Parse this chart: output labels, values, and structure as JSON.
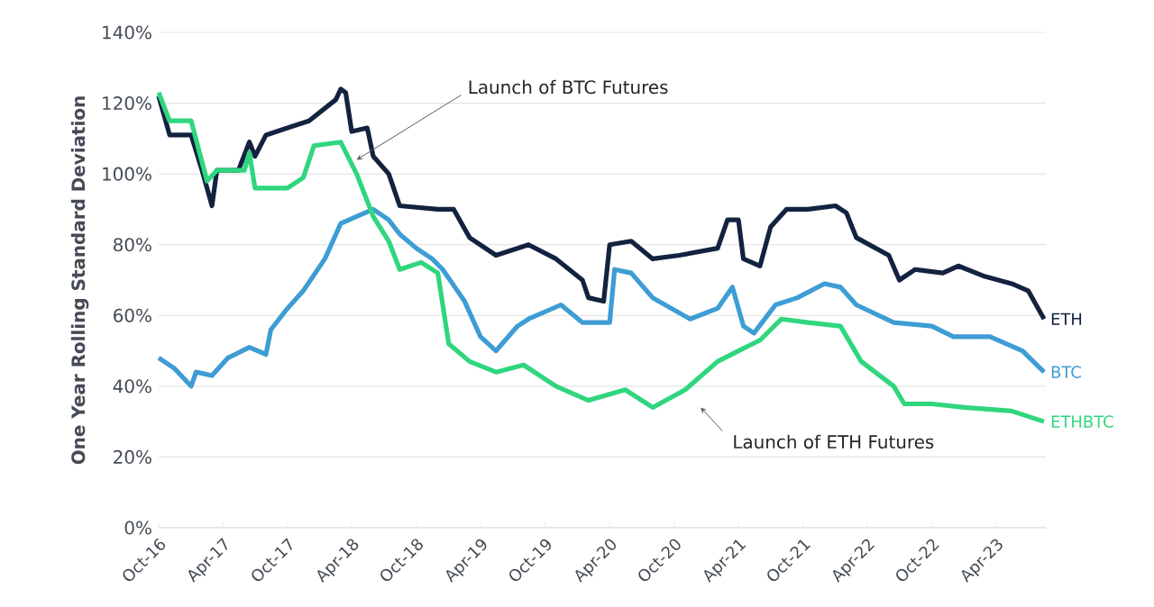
{
  "chart_data": {
    "type": "line",
    "ylabel": "One Year Rolling Standard Deviation",
    "ylim": [
      0,
      140
    ],
    "yticks": [
      {
        "value": 0,
        "label": "0%"
      },
      {
        "value": 20,
        "label": "20%"
      },
      {
        "value": 40,
        "label": "40%"
      },
      {
        "value": 60,
        "label": "60%"
      },
      {
        "value": 80,
        "label": "80%"
      },
      {
        "value": 100,
        "label": "100%"
      },
      {
        "value": 120,
        "label": "120%"
      },
      {
        "value": 140,
        "label": "140%"
      }
    ],
    "xlim": [
      "2016-10-01",
      "2023-08-20"
    ],
    "xticks": [
      {
        "value": "2016-10-01",
        "label": "Oct-16"
      },
      {
        "value": "2017-04-01",
        "label": "Apr-17"
      },
      {
        "value": "2017-10-01",
        "label": "Oct-17"
      },
      {
        "value": "2018-04-01",
        "label": "Apr-18"
      },
      {
        "value": "2018-10-01",
        "label": "Oct-18"
      },
      {
        "value": "2019-04-01",
        "label": "Apr-19"
      },
      {
        "value": "2019-10-01",
        "label": "Oct-19"
      },
      {
        "value": "2020-04-01",
        "label": "Apr-20"
      },
      {
        "value": "2020-10-01",
        "label": "Oct-20"
      },
      {
        "value": "2021-04-01",
        "label": "Apr-21"
      },
      {
        "value": "2021-10-01",
        "label": "Oct-21"
      },
      {
        "value": "2022-04-01",
        "label": "Apr-22"
      },
      {
        "value": "2022-10-01",
        "label": "Oct-22"
      },
      {
        "value": "2023-04-01",
        "label": "Apr-23"
      }
    ],
    "grid": "y",
    "legend": false,
    "marker": "none",
    "line_style": "solid",
    "annotations": [
      {
        "text": "Launch of BTC Futures",
        "x": "2018-04-15",
        "y": 104
      },
      {
        "text": "Launch of ETH Futures",
        "x": "2020-12-15",
        "y": 34
      }
    ],
    "series": [
      {
        "name": "ETH",
        "color": "#13223f",
        "x": [
          "2016-10-01",
          "2016-11-01",
          "2017-01-01",
          "2017-02-01",
          "2017-03-01",
          "2017-03-15",
          "2017-05-15",
          "2017-06-15",
          "2017-07-01",
          "2017-08-01",
          "2017-10-01",
          "2017-12-01",
          "2018-02-15",
          "2018-03-01",
          "2018-03-15",
          "2018-04-01",
          "2018-05-15",
          "2018-06-01",
          "2018-07-15",
          "2018-08-15",
          "2018-12-01",
          "2019-01-15",
          "2019-03-01",
          "2019-05-15",
          "2019-08-15",
          "2019-11-01",
          "2020-01-15",
          "2020-02-01",
          "2020-03-15",
          "2020-04-01",
          "2020-06-01",
          "2020-08-01",
          "2020-10-15",
          "2021-02-01",
          "2021-03-01",
          "2021-04-01",
          "2021-04-15",
          "2021-06-01",
          "2021-07-01",
          "2021-08-15",
          "2021-10-15",
          "2022-01-01",
          "2022-02-01",
          "2022-03-01",
          "2022-06-01",
          "2022-07-01",
          "2022-08-15",
          "2022-11-01",
          "2022-12-15",
          "2023-03-01",
          "2023-05-15",
          "2023-07-01",
          "2023-08-15"
        ],
        "values": [
          122,
          111,
          111,
          101,
          91,
          101,
          101,
          109,
          105,
          111,
          113,
          115,
          121,
          124,
          123,
          112,
          113,
          105,
          100,
          91,
          90,
          90,
          82,
          77,
          80,
          76,
          70,
          65,
          64,
          80,
          81,
          76,
          77,
          79,
          87,
          87,
          76,
          74,
          85,
          90,
          90,
          91,
          89,
          82,
          77,
          70,
          73,
          72,
          74,
          71,
          69,
          67,
          59
        ]
      },
      {
        "name": "BTC",
        "color": "#3d9dd4",
        "x": [
          "2016-10-01",
          "2016-11-15",
          "2017-01-01",
          "2017-01-15",
          "2017-03-01",
          "2017-04-15",
          "2017-06-15",
          "2017-08-01",
          "2017-08-15",
          "2017-10-01",
          "2017-11-15",
          "2018-01-15",
          "2018-03-01",
          "2018-04-15",
          "2018-06-01",
          "2018-07-15",
          "2018-08-15",
          "2018-10-01",
          "2018-11-15",
          "2018-12-15",
          "2019-02-15",
          "2019-04-01",
          "2019-05-15",
          "2019-07-15",
          "2019-08-15",
          "2019-11-15",
          "2020-01-15",
          "2020-04-01",
          "2020-04-15",
          "2020-06-01",
          "2020-08-01",
          "2020-11-15",
          "2021-02-01",
          "2021-03-15",
          "2021-04-15",
          "2021-05-15",
          "2021-07-15",
          "2021-09-15",
          "2021-12-01",
          "2022-01-15",
          "2022-03-01",
          "2022-06-15",
          "2022-10-01",
          "2022-12-01",
          "2023-03-15",
          "2023-06-15",
          "2023-08-15"
        ],
        "values": [
          48,
          45,
          40,
          44,
          43,
          48,
          51,
          49,
          56,
          62,
          67,
          76,
          86,
          88,
          90,
          87,
          83,
          79,
          76,
          73,
          64,
          54,
          50,
          57,
          59,
          63,
          58,
          58,
          73,
          72,
          65,
          59,
          62,
          68,
          57,
          55,
          63,
          65,
          69,
          68,
          63,
          58,
          57,
          54,
          54,
          50,
          44
        ]
      },
      {
        "name": "ETHBTC",
        "color": "#2fd67e",
        "x": [
          "2016-10-01",
          "2016-11-01",
          "2017-01-01",
          "2017-02-15",
          "2017-03-15",
          "2017-06-01",
          "2017-06-15",
          "2017-07-01",
          "2017-10-01",
          "2017-11-15",
          "2017-12-15",
          "2018-03-01",
          "2018-04-15",
          "2018-06-01",
          "2018-07-15",
          "2018-08-15",
          "2018-10-15",
          "2018-12-01",
          "2019-01-01",
          "2019-03-01",
          "2019-05-15",
          "2019-08-01",
          "2019-11-01",
          "2020-02-01",
          "2020-05-15",
          "2020-08-01",
          "2020-11-01",
          "2021-02-01",
          "2021-04-01",
          "2021-06-01",
          "2021-08-01",
          "2021-10-15",
          "2022-01-15",
          "2022-03-15",
          "2022-06-15",
          "2022-07-15",
          "2022-10-01",
          "2023-01-01",
          "2023-05-15",
          "2023-08-15"
        ],
        "values": [
          123,
          115,
          115,
          98,
          101,
          101,
          106,
          96,
          96,
          99,
          108,
          109,
          100,
          88,
          81,
          73,
          75,
          72,
          52,
          47,
          44,
          46,
          40,
          36,
          39,
          34,
          39,
          47,
          50,
          53,
          59,
          58,
          57,
          47,
          40,
          35,
          35,
          34,
          33,
          30
        ]
      }
    ]
  }
}
